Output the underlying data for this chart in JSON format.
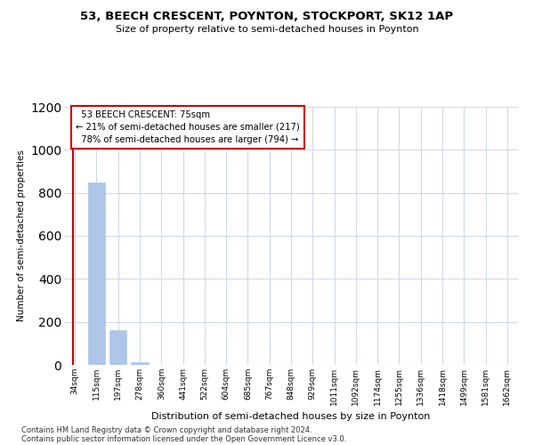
{
  "title": "53, BEECH CRESCENT, POYNTON, STOCKPORT, SK12 1AP",
  "subtitle": "Size of property relative to semi-detached houses in Poynton",
  "xlabel": "Distribution of semi-detached houses by size in Poynton",
  "ylabel": "Number of semi-detached properties",
  "bar_labels": [
    "34sqm",
    "115sqm",
    "197sqm",
    "278sqm",
    "360sqm",
    "441sqm",
    "522sqm",
    "604sqm",
    "685sqm",
    "767sqm",
    "848sqm",
    "929sqm",
    "1011sqm",
    "1092sqm",
    "1174sqm",
    "1255sqm",
    "1336sqm",
    "1418sqm",
    "1499sqm",
    "1581sqm",
    "1662sqm"
  ],
  "bar_values": [
    0,
    848,
    160,
    14,
    0,
    0,
    0,
    0,
    0,
    0,
    0,
    0,
    0,
    0,
    0,
    0,
    0,
    0,
    0,
    0,
    0
  ],
  "bar_color": "#aec6e8",
  "bar_edge_color": "#aec6e8",
  "ylim": [
    0,
    1200
  ],
  "yticks": [
    0,
    200,
    400,
    600,
    800,
    1000,
    1200
  ],
  "property_label": "53 BEECH CRESCENT: 75sqm",
  "pct_smaller": 21,
  "count_smaller": 217,
  "pct_larger": 78,
  "count_larger": 794,
  "annotation_box_color": "#ffffff",
  "annotation_box_edge": "#cc0000",
  "vertical_line_color": "#cc0000",
  "footer_line1": "Contains HM Land Registry data © Crown copyright and database right 2024.",
  "footer_line2": "Contains public sector information licensed under the Open Government Licence v3.0.",
  "background_color": "#ffffff",
  "grid_color": "#d0d8e8"
}
